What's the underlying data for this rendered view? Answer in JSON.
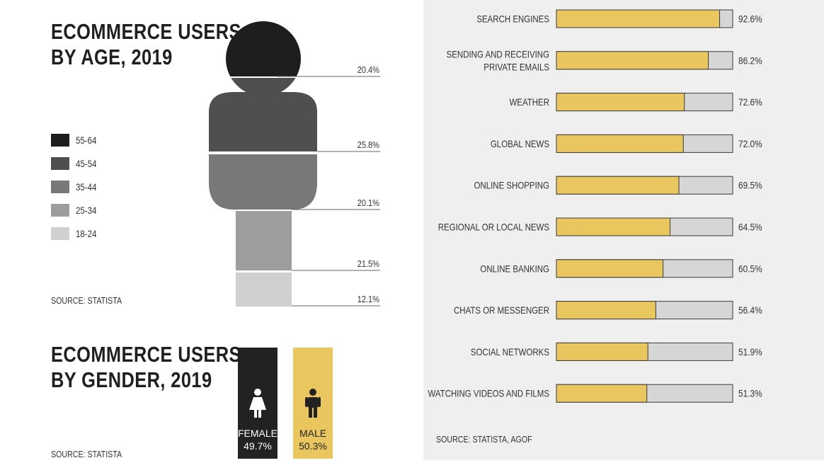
{
  "age": {
    "title_line1": "ECOMMERCE USERS",
    "title_line2": "BY AGE, 2019",
    "source": "SOURCE: STATISTA",
    "legend": [
      {
        "label": "55-64",
        "color": "#1e1e1e"
      },
      {
        "label": "45-54",
        "color": "#4f4f4f"
      },
      {
        "label": "35-44",
        "color": "#787878"
      },
      {
        "label": "25-34",
        "color": "#9d9d9d"
      },
      {
        "label": "18-24",
        "color": "#d0d0d0"
      }
    ]
  },
  "gender": {
    "title_line1": "ECOMMERCE USERS",
    "title_line2": "BY GENDER, 2019",
    "source": "SOURCE: STATISTA",
    "female": {
      "label": "FEMALE",
      "value": "49.7%",
      "color": "#222222"
    },
    "male": {
      "label": "MALE",
      "value": "50.3%",
      "color": "#e9c65e"
    }
  },
  "activities": {
    "source": "SOURCE: STATISTA, AGOF",
    "bar_color": "#e9c65e",
    "track_color": "#d6d6d6"
  },
  "chart_data": [
    {
      "type": "bar",
      "title": "ECOMMERCE USERS BY AGE, 2019",
      "categories": [
        "55-64",
        "45-54",
        "35-44",
        "25-34",
        "18-24"
      ],
      "values": [
        20.4,
        25.8,
        20.1,
        21.5,
        12.1
      ],
      "labels": [
        "20.4%",
        "25.8%",
        "20.1%",
        "21.5%",
        "12.1%"
      ]
    },
    {
      "type": "bar",
      "title": "ECOMMERCE USERS BY GENDER, 2019",
      "categories": [
        "FEMALE",
        "MALE"
      ],
      "values": [
        49.7,
        50.3
      ]
    },
    {
      "type": "bar",
      "orientation": "horizontal",
      "categories": [
        [
          "SEARCH ENGINES"
        ],
        [
          "SENDING AND RECEIVING",
          "PRIVATE EMAILS"
        ],
        [
          "WEATHER"
        ],
        [
          "GLOBAL NEWS"
        ],
        [
          "ONLINE SHOPPING"
        ],
        [
          "REGIONAL OR LOCAL NEWS"
        ],
        [
          "ONLINE BANKING"
        ],
        [
          "CHATS OR MESSENGER"
        ],
        [
          "SOCIAL NETWORKS"
        ],
        [
          "WATCHING VIDEOS AND FILMS"
        ]
      ],
      "values": [
        92.6,
        86.2,
        72.6,
        72.0,
        69.5,
        64.5,
        60.5,
        56.4,
        51.9,
        51.3
      ],
      "labels": [
        "92.6%",
        "86.2%",
        "72.6%",
        "72.0%",
        "69.5%",
        "64.5%",
        "60.5%",
        "56.4%",
        "51.9%",
        "51.3%"
      ],
      "xlim": [
        0,
        100
      ]
    }
  ]
}
